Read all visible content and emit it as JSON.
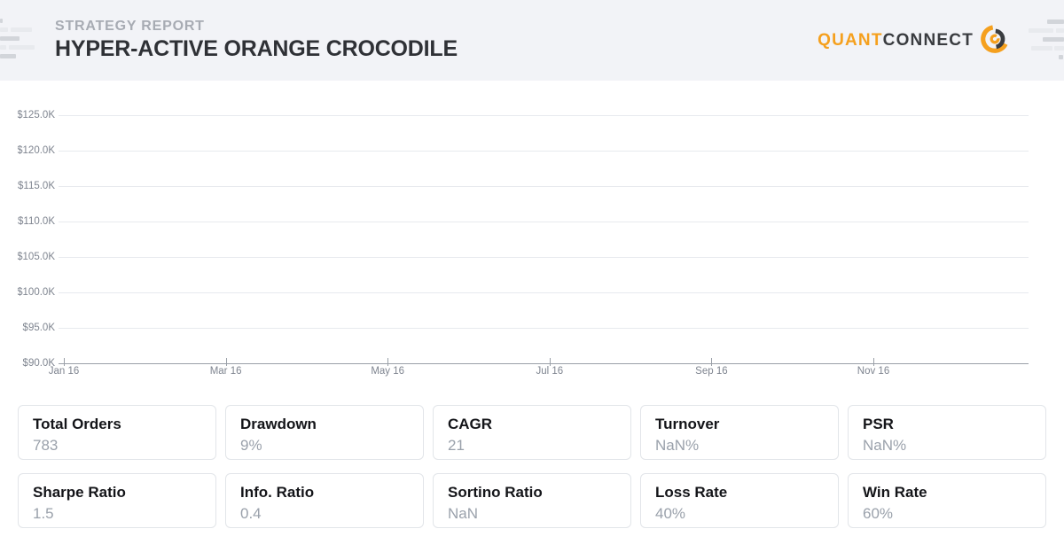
{
  "header": {
    "report_label": "STRATEGY REPORT",
    "strategy_name": "HYPER-ACTIVE ORANGE CROCODILE",
    "logo": {
      "brand_primary": "QUANT",
      "brand_secondary": "CONNECT",
      "icon": "quantconnect-mark-icon"
    }
  },
  "chart_data": {
    "type": "line",
    "title": "",
    "xlabel": "",
    "ylabel": "",
    "y_tick_labels": [
      "$90.0K",
      "$95.0K",
      "$100.0K",
      "$105.0K",
      "$110.0K",
      "$115.0K",
      "$120.0K",
      "$125.0K"
    ],
    "y_tick_values": [
      90000,
      95000,
      100000,
      105000,
      110000,
      115000,
      120000,
      125000
    ],
    "x_tick_labels": [
      "Jan 16",
      "Mar 16",
      "May 16",
      "Jul 16",
      "Sep 16",
      "Nov 16"
    ],
    "ylim": [
      90000,
      125000
    ],
    "xrange": [
      "Jan 2016",
      "Dec 2016"
    ],
    "grid": true,
    "legend": "none",
    "series": []
  },
  "stats": {
    "cards": [
      {
        "label": "Total Orders",
        "value": "783"
      },
      {
        "label": "Drawdown",
        "value": "9%"
      },
      {
        "label": "CAGR",
        "value": "21"
      },
      {
        "label": "Turnover",
        "value": "NaN%"
      },
      {
        "label": "PSR",
        "value": "NaN%"
      },
      {
        "label": "Sharpe Ratio",
        "value": "1.5"
      },
      {
        "label": "Info. Ratio",
        "value": "0.4"
      },
      {
        "label": "Sortino Ratio",
        "value": "NaN"
      },
      {
        "label": "Loss Rate",
        "value": "40%"
      },
      {
        "label": "Win Rate",
        "value": "60%"
      }
    ]
  },
  "colors": {
    "accent_orange": "#f5a01e",
    "logo_dark": "#3a3c40",
    "header_bg": "#f2f3f7",
    "grid_line": "#e7eaee",
    "axis_line": "#9aa0a8",
    "muted_text": "#9aa1ab",
    "card_border": "#e2e5e9"
  }
}
